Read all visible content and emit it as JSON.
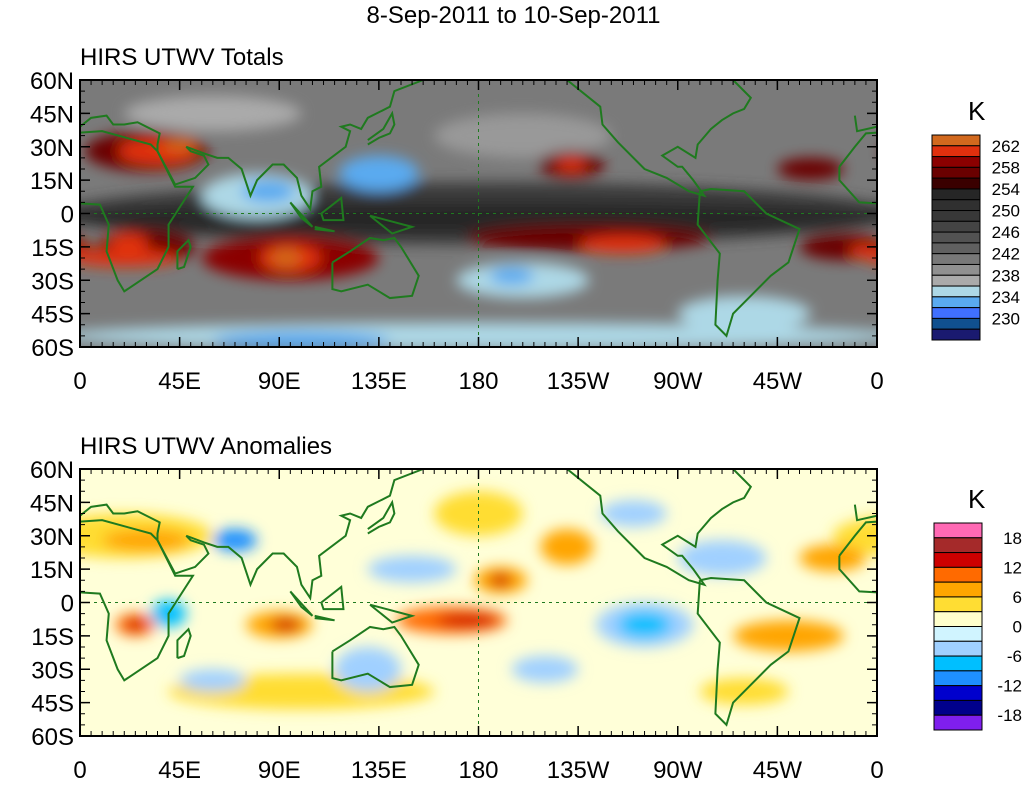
{
  "title": "8-Sep-2011 to 10-Sep-2011",
  "x_ticks": [
    "0",
    "45E",
    "90E",
    "135E",
    "180",
    "135W",
    "90W",
    "45W",
    "0"
  ],
  "y_ticks": [
    "60N",
    "45N",
    "30N",
    "15N",
    "0",
    "15S",
    "30S",
    "45S",
    "60S"
  ],
  "panels": [
    {
      "title": "HIRS UTWV Totals",
      "colorbar": {
        "unit": "K",
        "labels": [
          "262",
          "258",
          "254",
          "250",
          "246",
          "242",
          "238",
          "234",
          "230"
        ],
        "colors": [
          "#d2691e",
          "#e0300e",
          "#8b0000",
          "#6a0000",
          "#3a0000",
          "#262626",
          "#303030",
          "#383838",
          "#444444",
          "#525252",
          "#606060",
          "#787878",
          "#909090",
          "#aaaaaa",
          "#add8e6",
          "#5aaaf0",
          "#4070ff",
          "#10508f",
          "#1a1a70"
        ]
      }
    },
    {
      "title": "HIRS UTWV Anomalies",
      "colorbar": {
        "unit": "K",
        "labels": [
          "18",
          "12",
          "6",
          "0",
          "-6",
          "-12",
          "-18"
        ],
        "colors": [
          "#ff69b4",
          "#a52a2a",
          "#cd0000",
          "#ff6a00",
          "#ffa500",
          "#ffdd33",
          "#ffffcc",
          "#d0f4ff",
          "#a0d0ff",
          "#00bfff",
          "#1e90ff",
          "#0000cd",
          "#00008b",
          "#7f1fee"
        ]
      }
    }
  ]
}
